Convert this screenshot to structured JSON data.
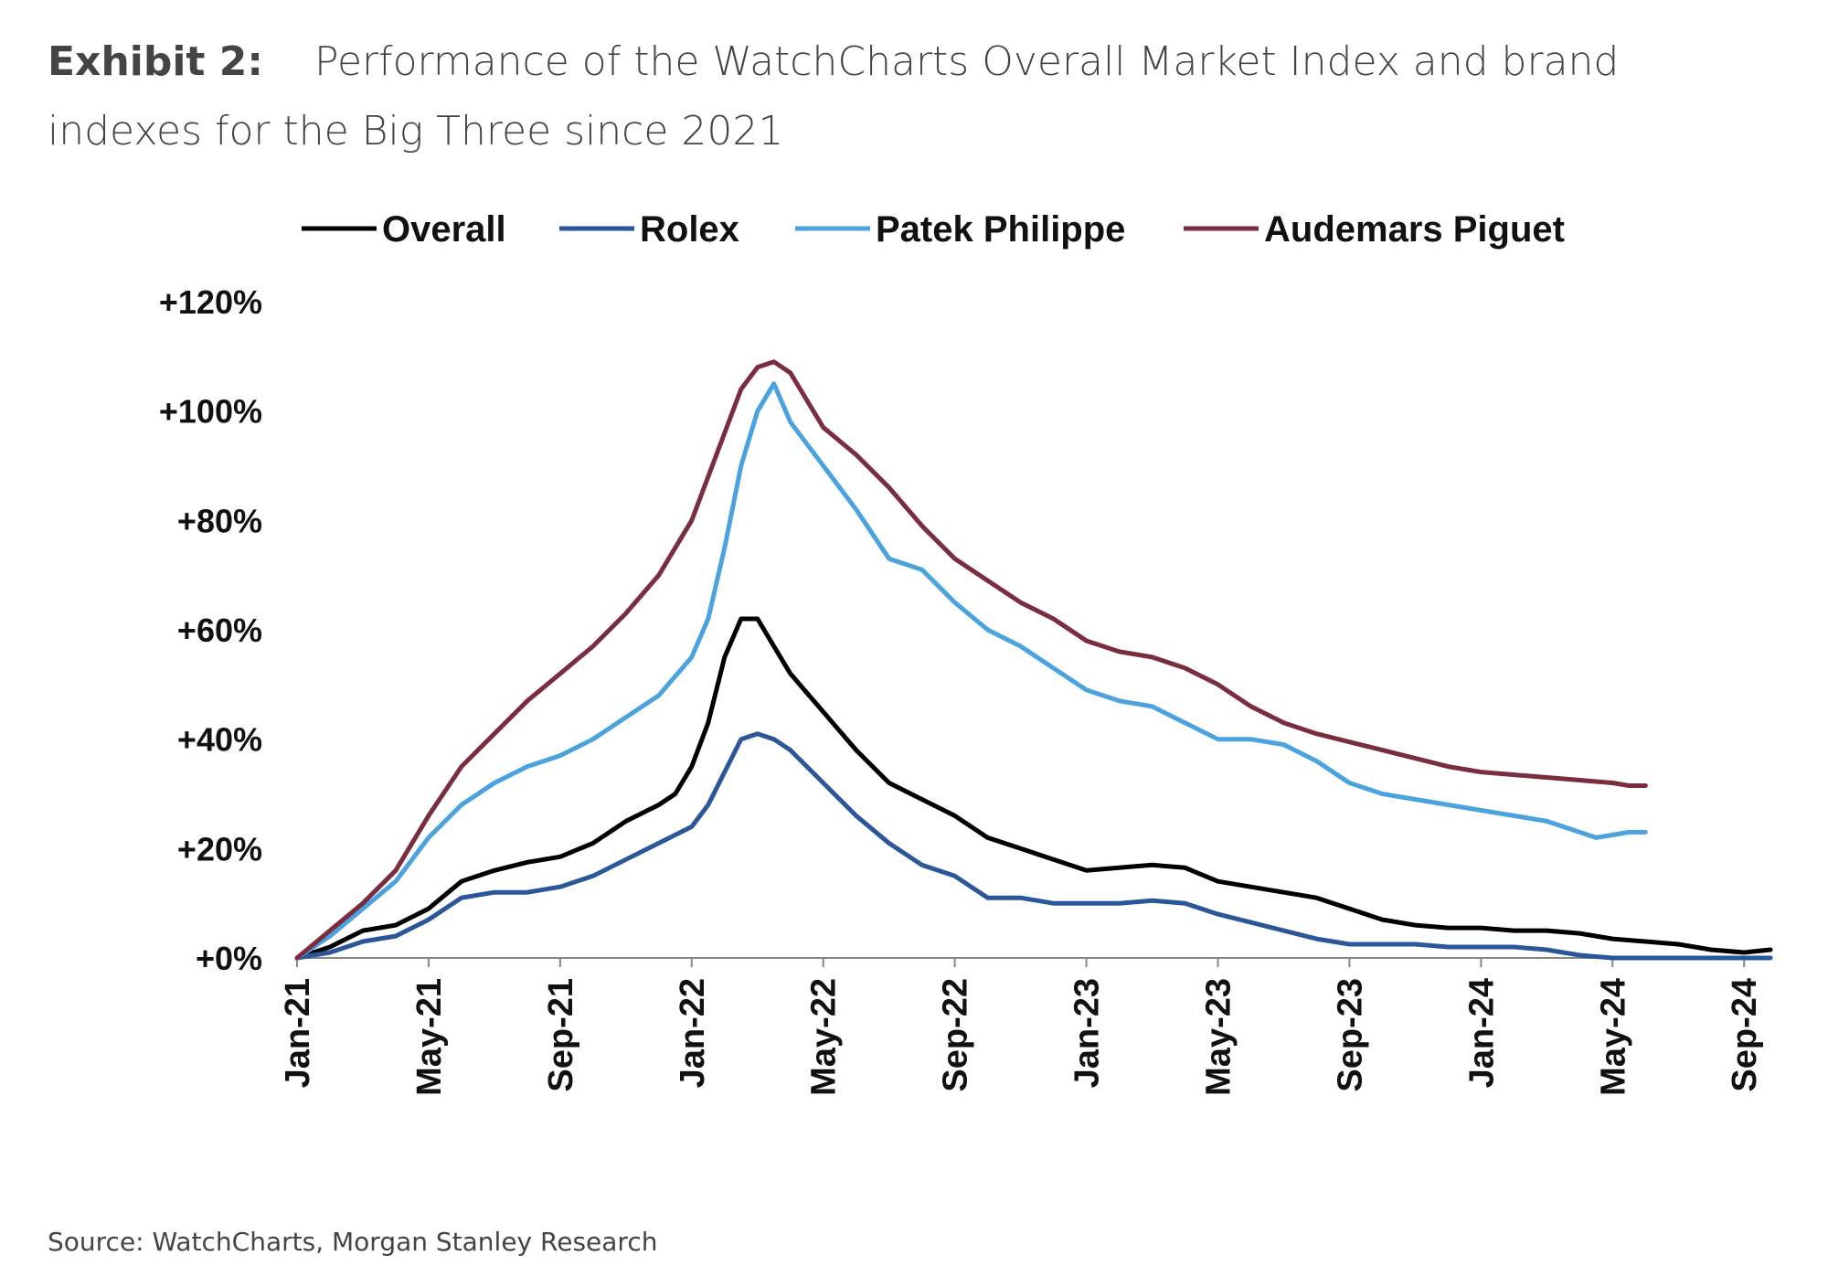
{
  "header": {
    "exhibit_label": "Exhibit 2:",
    "title": "Performance of the WatchCharts Overall Market Index and brand indexes for the Big Three since 2021"
  },
  "source": "Source: WatchCharts, Morgan Stanley Research",
  "chart_data": {
    "type": "line",
    "legend_position": "top",
    "grid": false,
    "ylim": [
      0,
      120
    ],
    "y_ticks": [
      0,
      20,
      40,
      60,
      80,
      100,
      120
    ],
    "y_tick_labels": [
      "+0%",
      "+20%",
      "+40%",
      "+60%",
      "+80%",
      "+100%",
      "+120%"
    ],
    "x_ticks": [
      0,
      4,
      8,
      12,
      16,
      20,
      24,
      28,
      32,
      36,
      40,
      44
    ],
    "x_tick_labels": [
      "Jan-21",
      "May-21",
      "Sep-21",
      "Jan-22",
      "May-22",
      "Sep-22",
      "Jan-23",
      "May-23",
      "Sep-23",
      "Jan-24",
      "May-24",
      "Sep-24"
    ],
    "xlim": [
      0,
      44.8
    ],
    "x_unit": "months since Jan-21",
    "series": [
      {
        "name": "Overall",
        "color": "#000000",
        "points": [
          [
            0,
            0
          ],
          [
            1,
            2
          ],
          [
            2,
            5
          ],
          [
            3,
            6
          ],
          [
            4,
            9
          ],
          [
            5,
            14
          ],
          [
            6,
            16
          ],
          [
            7,
            17.5
          ],
          [
            8,
            18.5
          ],
          [
            9,
            21
          ],
          [
            10,
            25
          ],
          [
            11,
            28
          ],
          [
            11.5,
            30
          ],
          [
            12,
            35
          ],
          [
            12.5,
            43
          ],
          [
            13,
            55
          ],
          [
            13.5,
            62
          ],
          [
            14,
            62
          ],
          [
            14.5,
            57
          ],
          [
            15,
            52
          ],
          [
            16,
            45
          ],
          [
            17,
            38
          ],
          [
            18,
            32
          ],
          [
            19,
            29
          ],
          [
            20,
            26
          ],
          [
            21,
            22
          ],
          [
            22,
            20
          ],
          [
            23,
            18
          ],
          [
            24,
            16
          ],
          [
            25,
            16.5
          ],
          [
            26,
            17
          ],
          [
            27,
            16.5
          ],
          [
            28,
            14
          ],
          [
            29,
            13
          ],
          [
            30,
            12
          ],
          [
            31,
            11
          ],
          [
            32,
            9
          ],
          [
            33,
            7
          ],
          [
            34,
            6
          ],
          [
            35,
            5.5
          ],
          [
            36,
            5.5
          ],
          [
            37,
            5
          ],
          [
            38,
            5
          ],
          [
            39,
            4.5
          ],
          [
            40,
            3.5
          ],
          [
            41,
            3
          ],
          [
            42,
            2.5
          ],
          [
            43,
            1.5
          ],
          [
            44,
            1
          ],
          [
            44.8,
            1.5
          ]
        ]
      },
      {
        "name": "Rolex",
        "color": "#2B579A",
        "points": [
          [
            0,
            0
          ],
          [
            1,
            1
          ],
          [
            2,
            3
          ],
          [
            3,
            4
          ],
          [
            4,
            7
          ],
          [
            5,
            11
          ],
          [
            6,
            12
          ],
          [
            7,
            12
          ],
          [
            8,
            13
          ],
          [
            9,
            15
          ],
          [
            10,
            18
          ],
          [
            11,
            21
          ],
          [
            12,
            24
          ],
          [
            12.5,
            28
          ],
          [
            13,
            34
          ],
          [
            13.5,
            40
          ],
          [
            14,
            41
          ],
          [
            14.5,
            40
          ],
          [
            15,
            38
          ],
          [
            16,
            32
          ],
          [
            17,
            26
          ],
          [
            18,
            21
          ],
          [
            19,
            17
          ],
          [
            20,
            15
          ],
          [
            21,
            11
          ],
          [
            22,
            11
          ],
          [
            23,
            10
          ],
          [
            24,
            10
          ],
          [
            25,
            10
          ],
          [
            26,
            10.5
          ],
          [
            27,
            10
          ],
          [
            28,
            8
          ],
          [
            29,
            6.5
          ],
          [
            30,
            5
          ],
          [
            31,
            3.5
          ],
          [
            32,
            2.5
          ],
          [
            33,
            2.5
          ],
          [
            34,
            2.5
          ],
          [
            35,
            2
          ],
          [
            36,
            2
          ],
          [
            37,
            2
          ],
          [
            38,
            1.5
          ],
          [
            39,
            0.5
          ],
          [
            40,
            0
          ],
          [
            42,
            0
          ],
          [
            44.8,
            0
          ]
        ]
      },
      {
        "name": "Patek Philippe",
        "color": "#4AA3DF",
        "points": [
          [
            0,
            0
          ],
          [
            1,
            4
          ],
          [
            2,
            9
          ],
          [
            3,
            14
          ],
          [
            4,
            22
          ],
          [
            5,
            28
          ],
          [
            6,
            32
          ],
          [
            7,
            35
          ],
          [
            8,
            37
          ],
          [
            9,
            40
          ],
          [
            10,
            44
          ],
          [
            11,
            48
          ],
          [
            12,
            55
          ],
          [
            12.5,
            62
          ],
          [
            13,
            75
          ],
          [
            13.5,
            90
          ],
          [
            14,
            100
          ],
          [
            14.5,
            105
          ],
          [
            15,
            98
          ],
          [
            16,
            90
          ],
          [
            17,
            82
          ],
          [
            18,
            73
          ],
          [
            19,
            71
          ],
          [
            20,
            65
          ],
          [
            21,
            60
          ],
          [
            22,
            57
          ],
          [
            23,
            53
          ],
          [
            24,
            49
          ],
          [
            25,
            47
          ],
          [
            26,
            46
          ],
          [
            27,
            43
          ],
          [
            28,
            40
          ],
          [
            29,
            40
          ],
          [
            30,
            39
          ],
          [
            31,
            36
          ],
          [
            32,
            32
          ],
          [
            33,
            30
          ],
          [
            34,
            29
          ],
          [
            35,
            28
          ],
          [
            36,
            27
          ],
          [
            37,
            26
          ],
          [
            38,
            25
          ],
          [
            39,
            23
          ],
          [
            39.5,
            22
          ],
          [
            40,
            22.5
          ],
          [
            40.5,
            23
          ],
          [
            41,
            23
          ]
        ]
      },
      {
        "name": "Audemars Piguet",
        "color": "#7B2D40",
        "points": [
          [
            0,
            0
          ],
          [
            1,
            5
          ],
          [
            2,
            10
          ],
          [
            3,
            16
          ],
          [
            4,
            26
          ],
          [
            5,
            35
          ],
          [
            6,
            41
          ],
          [
            7,
            47
          ],
          [
            8,
            52
          ],
          [
            9,
            57
          ],
          [
            10,
            63
          ],
          [
            11,
            70
          ],
          [
            12,
            80
          ],
          [
            12.5,
            88
          ],
          [
            13,
            96
          ],
          [
            13.5,
            104
          ],
          [
            14,
            108
          ],
          [
            14.5,
            109
          ],
          [
            15,
            107
          ],
          [
            16,
            97
          ],
          [
            17,
            92
          ],
          [
            18,
            86
          ],
          [
            19,
            79
          ],
          [
            20,
            73
          ],
          [
            21,
            69
          ],
          [
            22,
            65
          ],
          [
            23,
            62
          ],
          [
            24,
            58
          ],
          [
            25,
            56
          ],
          [
            26,
            55
          ],
          [
            27,
            53
          ],
          [
            28,
            50
          ],
          [
            29,
            46
          ],
          [
            30,
            43
          ],
          [
            31,
            41
          ],
          [
            32,
            39.5
          ],
          [
            33,
            38
          ],
          [
            34,
            36.5
          ],
          [
            35,
            35
          ],
          [
            36,
            34
          ],
          [
            37,
            33.5
          ],
          [
            38,
            33
          ],
          [
            39,
            32.5
          ],
          [
            40,
            32
          ],
          [
            40.5,
            31.5
          ],
          [
            41,
            31.5
          ]
        ]
      }
    ]
  }
}
